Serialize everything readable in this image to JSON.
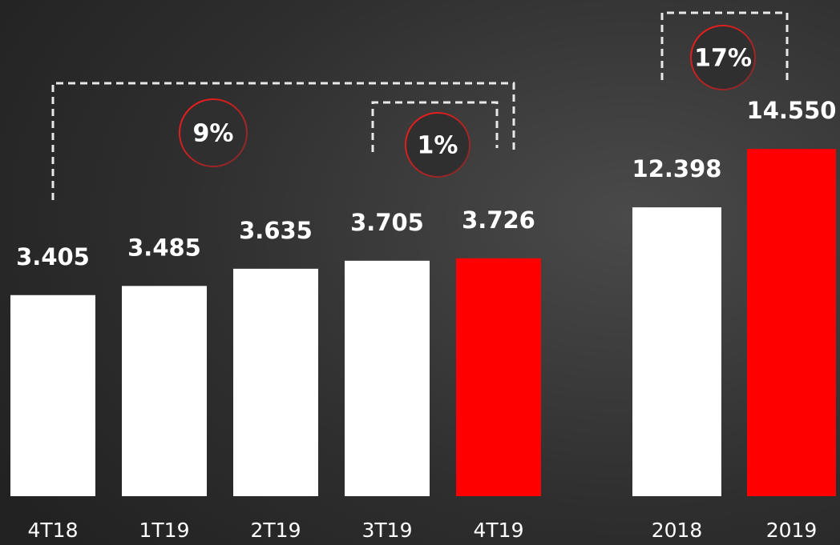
{
  "chart_data": [
    {
      "type": "bar",
      "categories": [
        "4T18",
        "1T19",
        "2T19",
        "3T19",
        "4T19"
      ],
      "values": [
        3405,
        3485,
        3635,
        3705,
        3726
      ],
      "value_labels": [
        "3.405",
        "3.485",
        "3.635",
        "3.705",
        "3.726"
      ],
      "colors": [
        "#ffffff",
        "#ffffff",
        "#ffffff",
        "#ffffff",
        "#ff0000"
      ],
      "ylim": [
        1650,
        4500
      ],
      "annotations": [
        "9%",
        "1%"
      ]
    },
    {
      "type": "bar",
      "categories": [
        "2018",
        "2019"
      ],
      "values": [
        12398,
        14550
      ],
      "value_labels": [
        "12.398",
        "14.550"
      ],
      "colors": [
        "#ffffff",
        "#ff0000"
      ],
      "ylim": [
        1750,
        16000
      ],
      "annotations": [
        "17%"
      ]
    }
  ]
}
